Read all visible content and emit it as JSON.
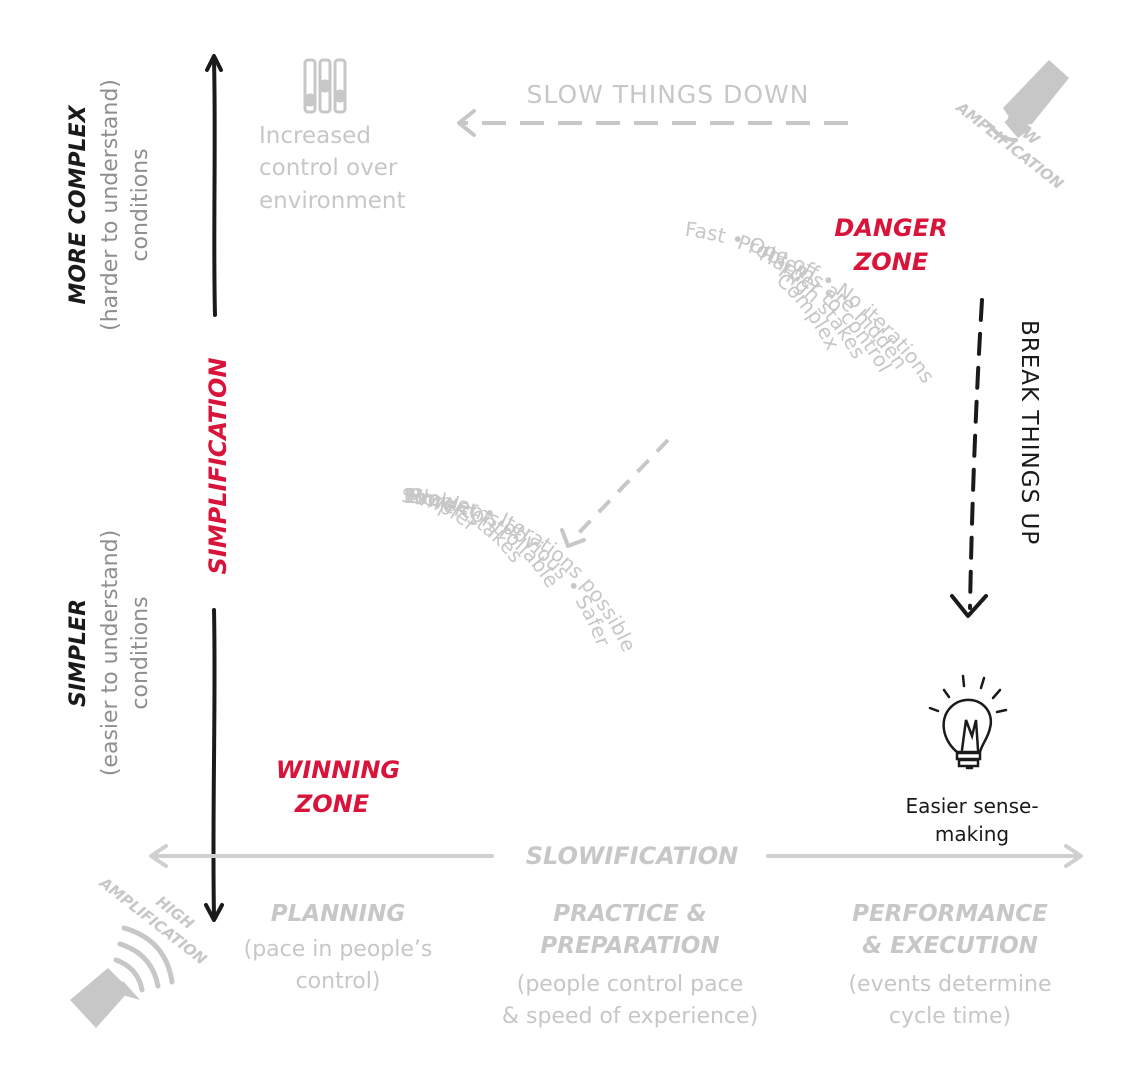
{
  "colors": {
    "accent": "#d9143a",
    "muted": "#c7c7c7",
    "ink": "#1a1a1a"
  },
  "axis_left": {
    "top": {
      "title": "MORE COMPLEX",
      "line1": "(harder to understand)",
      "line2": "conditions"
    },
    "bottom": {
      "title": "SIMPLER",
      "line1": "(easier to understand)",
      "line2": "conditions"
    },
    "center": "SIMPLIFICATION"
  },
  "top_left": {
    "line1": "Increased",
    "line2": "control over",
    "line3": "environment",
    "icon": "sliders-icon"
  },
  "slow_down": "SLOW THINGS DOWN",
  "low_amp": {
    "line1": "LOW",
    "line2": "AMPLIFICATION",
    "icon": "speaker-low-icon"
  },
  "high_amp": {
    "line1": "HIGH",
    "line2": "AMPLIFICATION",
    "icon": "speaker-high-icon"
  },
  "danger_zone": {
    "line1": "DANGER",
    "line2": "ZONE"
  },
  "winning_zone": {
    "line1": "WINNING",
    "line2": "ZONE"
  },
  "danger_list": [
    "Complex",
    "High stakes",
    "Harder to control",
    "Problems are hidden",
    "Fast • One off • No iterations"
  ],
  "winning_list": [
    "Slower • Iterations possible",
    "Problems obvious • Safer",
    "More controllable",
    "Lower stakes",
    "Simpler"
  ],
  "break_things_up": "BREAK THINGS UP",
  "sense_making": {
    "line1": "Easier sense-",
    "line2": "making",
    "icon": "lightbulb-icon"
  },
  "slowification": "SLOWIFICATION",
  "phases": [
    {
      "title1": "PLANNING",
      "title2": "",
      "desc1": "(pace in people’s",
      "desc2": "control)"
    },
    {
      "title1": "PRACTICE &",
      "title2": "PREPARATION",
      "desc1": "(people control pace",
      "desc2": "& speed of experience)"
    },
    {
      "title1": "PERFORMANCE",
      "title2": "& EXECUTION",
      "desc1": "(events determine",
      "desc2": "cycle time)"
    }
  ]
}
